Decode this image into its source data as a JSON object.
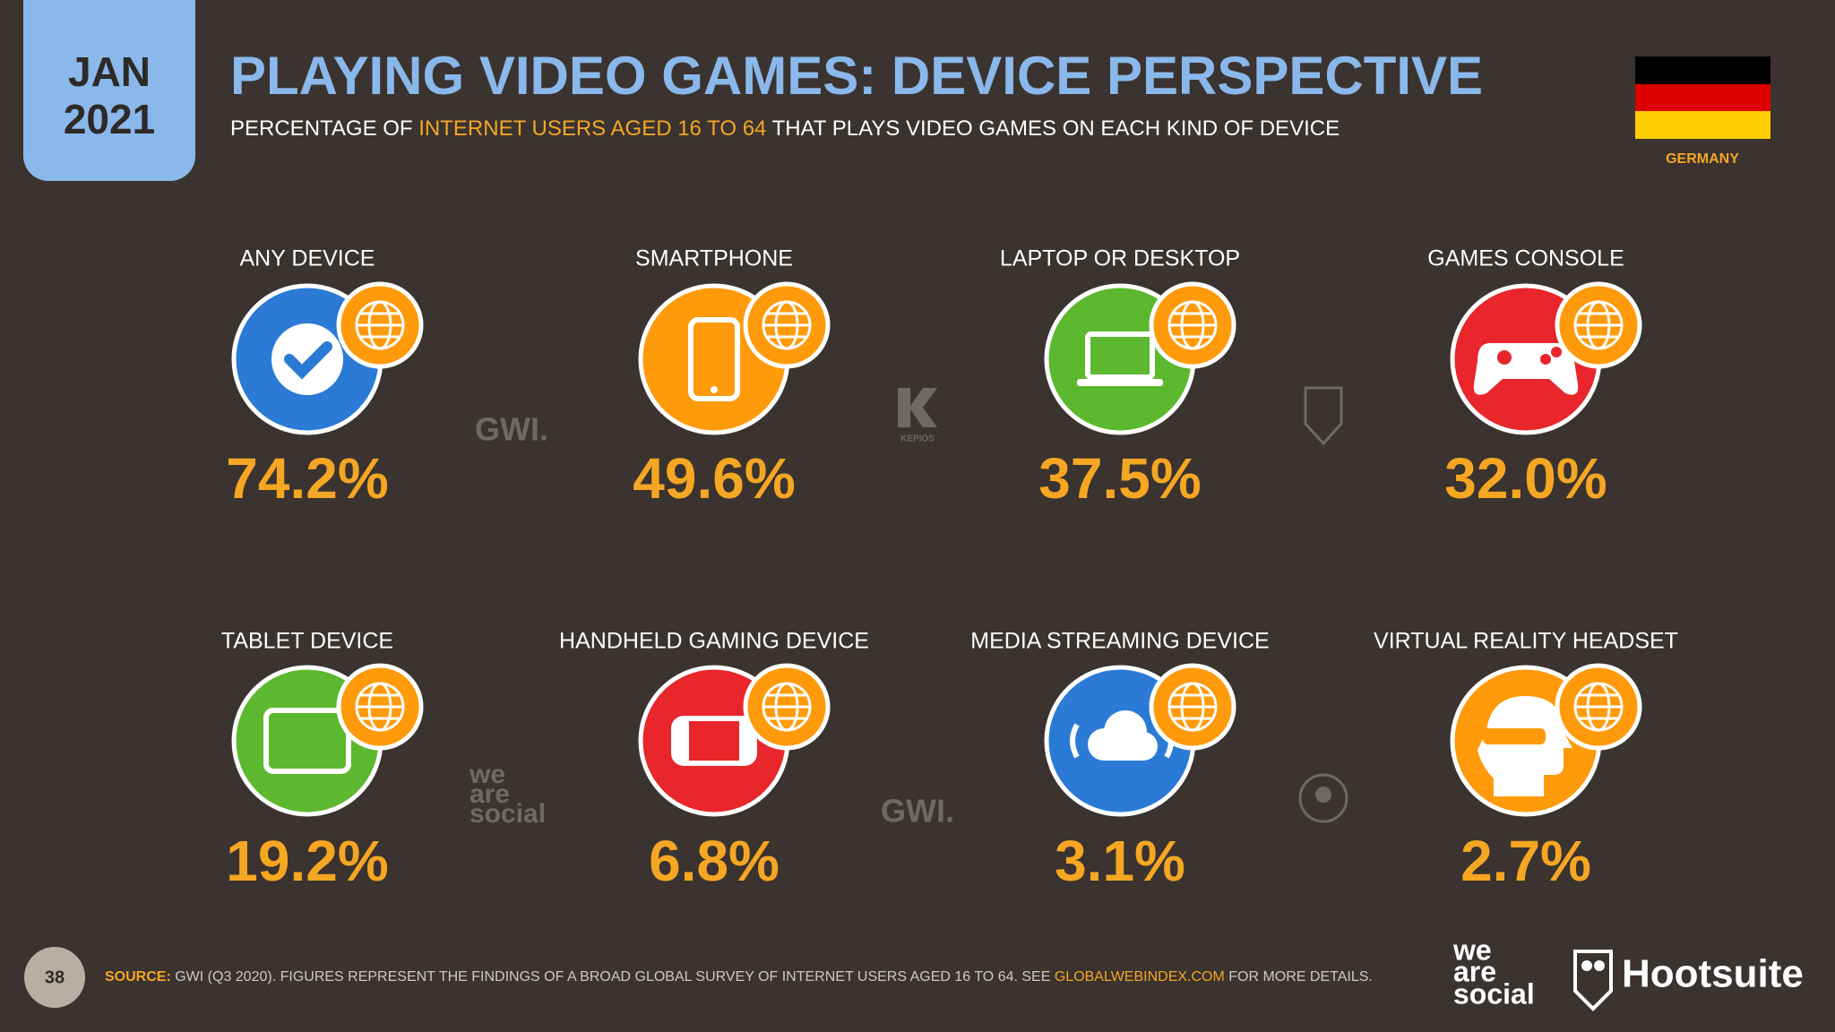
{
  "header": {
    "month": "JAN",
    "year": "2021",
    "title": "PLAYING VIDEO GAMES: DEVICE PERSPECTIVE",
    "subtitle": [
      "PERCENTAGE OF ",
      "INTERNET USERS AGED 16 TO 64",
      " THAT PLAYS VIDEO GAMES ON EACH KIND OF DEVICE"
    ],
    "country": "GERMANY"
  },
  "stats": [
    {
      "label": "ANY DEVICE",
      "value": "74.2%",
      "color": "#2b7bd6"
    },
    {
      "label": "SMARTPHONE",
      "value": "49.6%",
      "color": "#ff9a0a"
    },
    {
      "label": "LAPTOP OR DESKTOP",
      "value": "37.5%",
      "color": "#5cb82e"
    },
    {
      "label": "GAMES CONSOLE",
      "value": "32.0%",
      "color": "#e8262b"
    },
    {
      "label": "TABLET DEVICE",
      "value": "19.2%",
      "color": "#5cb82e"
    },
    {
      "label": "HANDHELD GAMING DEVICE",
      "value": "6.8%",
      "color": "#e8262b"
    },
    {
      "label": "MEDIA STREAMING DEVICE",
      "value": "3.1%",
      "color": "#2b7bd6"
    },
    {
      "label": "VIRTUAL REALITY HEADSET",
      "value": "2.7%",
      "color": "#ff9a0a"
    }
  ],
  "watermarks": {
    "gwi": "GWI.",
    "kepios": "KEPIOS",
    "was": [
      "we",
      "are",
      "social"
    ]
  },
  "footer": {
    "page": "38",
    "source_label": "SOURCE:",
    "source_text": " GWI (Q3 2020). FIGURES REPRESENT THE FINDINGS OF A BROAD GLOBAL SURVEY OF INTERNET USERS AGED 16 TO 64. SEE ",
    "source_link": "GLOBALWEBINDEX.COM",
    "source_end": " FOR MORE DETAILS.",
    "brand_was": [
      "we",
      "are",
      "social"
    ],
    "brand_hootsuite": "Hootsuite"
  }
}
